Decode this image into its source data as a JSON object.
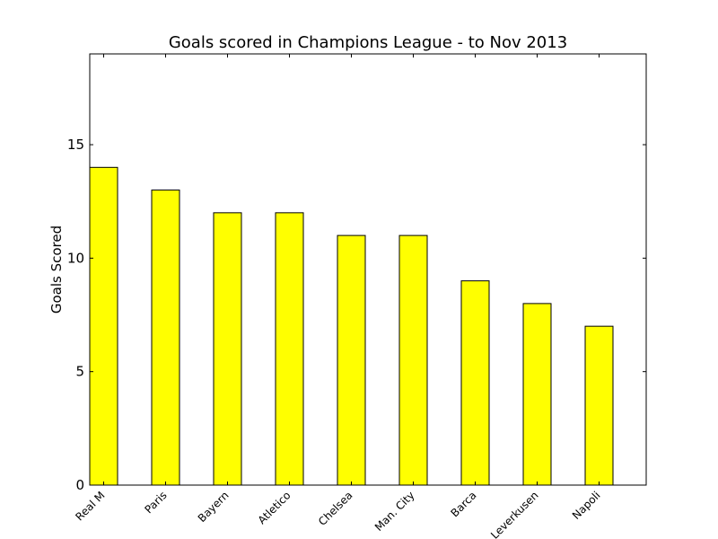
{
  "chart_data": {
    "type": "bar",
    "title": "Goals scored in Champions League - to Nov 2013",
    "xlabel": "",
    "ylabel": "Goals Scored",
    "categories": [
      "Real M",
      "Paris",
      "Bayern",
      "Atletico",
      "Chelsea",
      "Man. City",
      "Barca",
      "Leverkusen",
      "Napoli"
    ],
    "values": [
      14,
      13,
      12,
      12,
      11,
      11,
      9,
      8,
      7
    ],
    "ylim": [
      0,
      19
    ],
    "yticks": [
      0,
      5,
      10,
      15
    ],
    "bar_color": "#ffff00",
    "edge_color": "#000000",
    "grid": false,
    "legend": "none"
  }
}
